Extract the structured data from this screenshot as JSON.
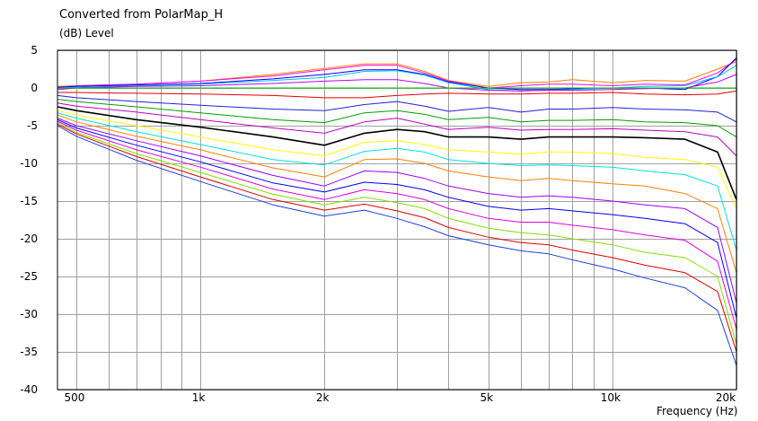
{
  "chart_data": {
    "type": "line",
    "title": "Converted from PolarMap_H",
    "ylabel": "(dB)  Level",
    "xlabel": "Frequency  (Hz)",
    "xscale": "log",
    "xlim": [
      450,
      20000
    ],
    "ylim": [
      -40,
      5
    ],
    "grid": true,
    "x_ticks": [
      {
        "value": 500,
        "label": "500"
      },
      {
        "value": 1000,
        "label": "1k"
      },
      {
        "value": 2000,
        "label": "2k"
      },
      {
        "value": 5000,
        "label": "5k"
      },
      {
        "value": 10000,
        "label": "10k"
      },
      {
        "value": 20000,
        "label": "20k"
      }
    ],
    "y_ticks": [
      5,
      0,
      -5,
      -10,
      -15,
      -20,
      -25,
      -30,
      -35,
      -40
    ],
    "x": [
      450,
      500,
      700,
      1000,
      1500,
      2000,
      2500,
      3000,
      3500,
      4000,
      5000,
      6000,
      7000,
      8000,
      10000,
      12000,
      15000,
      18000,
      20000
    ],
    "series": [
      {
        "color": "#ff8000",
        "values": [
          0.2,
          0.3,
          0.5,
          0.9,
          1.8,
          2.6,
          3.2,
          3.2,
          2.2,
          1.0,
          0.2,
          0.7,
          0.8,
          1.1,
          0.7,
          1.0,
          0.9,
          2.5,
          3.5
        ]
      },
      {
        "color": "#ff00ff",
        "values": [
          0.1,
          0.3,
          0.5,
          0.9,
          1.6,
          2.4,
          3.0,
          3.0,
          2.0,
          0.9,
          0.0,
          0.3,
          0.5,
          0.5,
          0.3,
          0.5,
          0.4,
          2.0,
          3.8
        ]
      },
      {
        "color": "#0000ff",
        "values": [
          0.1,
          0.2,
          0.4,
          0.6,
          1.2,
          1.8,
          2.4,
          2.4,
          1.8,
          0.8,
          0.0,
          -0.2,
          -0.2,
          -0.1,
          0.0,
          0.0,
          -0.2,
          1.5,
          4.0
        ]
      },
      {
        "color": "#00c0ff",
        "values": [
          0.0,
          0.1,
          0.3,
          0.5,
          1.0,
          1.4,
          2.2,
          2.3,
          1.7,
          0.7,
          -0.2,
          -0.4,
          -0.3,
          -0.2,
          0.0,
          0.2,
          0.3,
          1.5,
          3.0
        ]
      },
      {
        "color": "#c000ff",
        "values": [
          -0.2,
          0.0,
          0.2,
          0.3,
          0.6,
          0.9,
          1.1,
          1.1,
          0.6,
          0.0,
          -0.3,
          -0.4,
          -0.3,
          -0.3,
          -0.2,
          -0.1,
          0.0,
          0.8,
          1.8
        ]
      },
      {
        "color": "#00c000",
        "values": [
          0.0,
          0.0,
          0.0,
          0.0,
          0.0,
          0.0,
          0.0,
          0.0,
          0.0,
          0.0,
          0.0,
          0.0,
          0.0,
          0.0,
          0.0,
          0.0,
          0.0,
          0.0,
          0.0
        ]
      },
      {
        "color": "#e00000",
        "values": [
          -0.6,
          -0.6,
          -0.7,
          -0.8,
          -1.0,
          -1.3,
          -1.3,
          -1.0,
          -0.8,
          -0.7,
          -0.8,
          -0.8,
          -0.7,
          -0.7,
          -0.6,
          -0.8,
          -0.9,
          -0.8,
          -0.4
        ]
      },
      {
        "color": "#2020e0",
        "values": [
          -1.0,
          -1.3,
          -1.8,
          -2.3,
          -2.8,
          -3.0,
          -2.2,
          -1.8,
          -2.4,
          -3.1,
          -2.6,
          -3.2,
          -2.8,
          -2.8,
          -2.6,
          -2.8,
          -2.9,
          -3.2,
          -4.5
        ]
      },
      {
        "color": "#00a000",
        "values": [
          -1.5,
          -1.8,
          -2.5,
          -3.3,
          -4.2,
          -4.6,
          -3.3,
          -3.0,
          -3.5,
          -4.2,
          -3.9,
          -4.5,
          -4.3,
          -4.3,
          -4.2,
          -4.5,
          -4.6,
          -5.0,
          -6.5
        ]
      },
      {
        "color": "#c000c0",
        "values": [
          -2.0,
          -2.4,
          -3.2,
          -4.2,
          -5.3,
          -6.0,
          -4.5,
          -4.0,
          -4.8,
          -5.5,
          -5.2,
          -5.6,
          -5.5,
          -5.5,
          -5.4,
          -5.6,
          -5.8,
          -6.5,
          -9.0
        ]
      },
      {
        "color": "#000000",
        "values": [
          -2.5,
          -3.0,
          -4.2,
          -5.2,
          -6.5,
          -7.6,
          -6.0,
          -5.5,
          -5.8,
          -6.5,
          -6.5,
          -6.8,
          -6.5,
          -6.5,
          -6.5,
          -6.6,
          -6.8,
          -8.5,
          -14.8
        ]
      },
      {
        "color": "#ffff00",
        "values": [
          -3.0,
          -3.6,
          -5.0,
          -6.5,
          -8.2,
          -9.0,
          -7.2,
          -7.0,
          -7.5,
          -8.2,
          -8.5,
          -8.8,
          -8.5,
          -8.5,
          -8.7,
          -9.2,
          -9.5,
          -10.5,
          -16.0
        ]
      },
      {
        "color": "#00e0e0",
        "values": [
          -3.3,
          -4.0,
          -5.8,
          -7.5,
          -9.5,
          -10.2,
          -8.4,
          -8.0,
          -8.5,
          -9.5,
          -10.0,
          -10.3,
          -10.2,
          -10.3,
          -10.5,
          -11.0,
          -11.5,
          -13.0,
          -21.5
        ]
      },
      {
        "color": "#ff8000",
        "values": [
          -3.6,
          -4.5,
          -6.4,
          -8.2,
          -10.6,
          -11.8,
          -9.5,
          -9.4,
          -10.0,
          -11.0,
          -11.8,
          -12.3,
          -12.0,
          -12.3,
          -12.7,
          -13.0,
          -14.0,
          -16.0,
          -24.5
        ]
      },
      {
        "color": "#a000ff",
        "values": [
          -4.0,
          -5.0,
          -7.0,
          -9.0,
          -11.6,
          -13.0,
          -11.0,
          -11.2,
          -12.0,
          -13.0,
          -14.0,
          -14.5,
          -14.3,
          -14.5,
          -15.0,
          -15.5,
          -16.0,
          -18.5,
          -28.5
        ]
      },
      {
        "color": "#0000ff",
        "values": [
          -4.2,
          -5.3,
          -7.6,
          -9.8,
          -12.6,
          -13.8,
          -12.5,
          -12.8,
          -13.5,
          -14.5,
          -15.7,
          -16.2,
          -16.0,
          -16.3,
          -16.8,
          -17.3,
          -18.0,
          -20.5,
          -30.5
        ]
      },
      {
        "color": "#e000e0",
        "values": [
          -4.4,
          -5.6,
          -8.2,
          -10.5,
          -13.4,
          -14.8,
          -13.5,
          -14.0,
          -14.8,
          -16.0,
          -17.3,
          -17.8,
          -17.8,
          -18.2,
          -18.8,
          -19.5,
          -20.2,
          -23.0,
          -32.0
        ]
      },
      {
        "color": "#80e000",
        "values": [
          -4.6,
          -5.9,
          -8.7,
          -11.2,
          -14.1,
          -15.5,
          -14.5,
          -15.2,
          -16.0,
          -17.3,
          -18.6,
          -19.2,
          -19.5,
          -20.0,
          -20.8,
          -21.8,
          -22.5,
          -25.0,
          -34.0
        ]
      },
      {
        "color": "#e00000",
        "values": [
          -4.8,
          -6.1,
          -9.1,
          -11.8,
          -14.8,
          -16.2,
          -15.4,
          -16.3,
          -17.2,
          -18.5,
          -19.8,
          -20.5,
          -20.8,
          -21.5,
          -22.5,
          -23.5,
          -24.5,
          -27.0,
          -35.0
        ]
      },
      {
        "color": "#2040e0",
        "values": [
          -5.0,
          -6.4,
          -9.6,
          -12.4,
          -15.5,
          -17.0,
          -16.2,
          -17.3,
          -18.4,
          -19.6,
          -20.8,
          -21.6,
          -22.0,
          -22.8,
          -24.0,
          -25.2,
          -26.5,
          -29.5,
          -36.8
        ]
      }
    ]
  }
}
